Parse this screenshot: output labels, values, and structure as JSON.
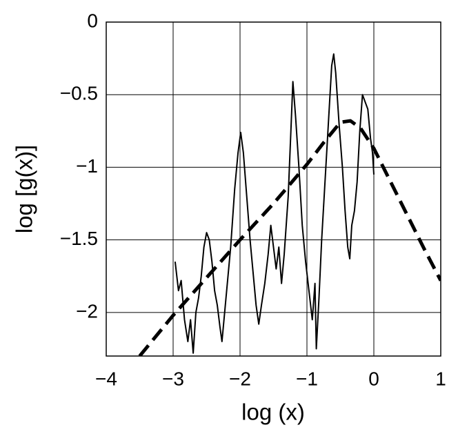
{
  "chart_data": {
    "type": "line",
    "xlabel": "log (x)",
    "ylabel": "log [g(x)]",
    "xlim": [
      -4,
      1
    ],
    "ylim": [
      -2.3,
      0
    ],
    "xticks": [
      {
        "value": -4,
        "label": "−4"
      },
      {
        "value": -3,
        "label": "−3"
      },
      {
        "value": -2,
        "label": "−2"
      },
      {
        "value": -1,
        "label": "−1"
      },
      0,
      1
    ],
    "yticks": [
      0,
      {
        "value": -0.5,
        "label": "−0.5"
      },
      {
        "value": -1,
        "label": "−1"
      },
      {
        "value": -1.5,
        "label": "−1.5"
      },
      {
        "value": -2,
        "label": "−2"
      }
    ],
    "grid": true,
    "series": [
      {
        "color": "#000000",
        "dashed": false,
        "x": [
          -2.97,
          -2.92,
          -2.88,
          -2.83,
          -2.78,
          -2.74,
          -2.7,
          -2.66,
          -2.62,
          -2.58,
          -2.54,
          -2.5,
          -2.46,
          -2.42,
          -2.38,
          -2.34,
          -2.3,
          -2.27,
          -2.24,
          -2.2,
          -2.14,
          -2.08,
          -2.03,
          -1.99,
          -1.95,
          -1.9,
          -1.85,
          -1.8,
          -1.76,
          -1.72,
          -1.68,
          -1.63,
          -1.58,
          -1.54,
          -1.5,
          -1.46,
          -1.42,
          -1.38,
          -1.34,
          -1.28,
          -1.24,
          -1.21,
          -1.17,
          -1.12,
          -1.07,
          -1.02,
          -0.97,
          -0.92,
          -0.88,
          -0.86,
          -0.82,
          -0.78,
          -0.73,
          -0.68,
          -0.63,
          -0.6,
          -0.57,
          -0.52,
          -0.47,
          -0.43,
          -0.39,
          -0.36,
          -0.33,
          -0.29,
          -0.25,
          -0.21,
          -0.17,
          -0.13,
          -0.09,
          -0.05,
          -0.02,
          0.0
        ],
        "values": [
          -1.65,
          -1.85,
          -1.78,
          -2.05,
          -2.2,
          -2.05,
          -2.28,
          -2.0,
          -1.9,
          -1.75,
          -1.55,
          -1.45,
          -1.5,
          -1.65,
          -1.85,
          -1.95,
          -2.1,
          -2.2,
          -2.05,
          -1.85,
          -1.55,
          -1.15,
          -0.9,
          -0.76,
          -0.9,
          -1.2,
          -1.5,
          -1.75,
          -1.95,
          -2.08,
          -1.95,
          -1.8,
          -1.6,
          -1.4,
          -1.55,
          -1.7,
          -1.55,
          -1.8,
          -1.6,
          -1.2,
          -0.75,
          -0.41,
          -0.65,
          -1.0,
          -1.4,
          -1.65,
          -1.85,
          -2.05,
          -1.8,
          -2.25,
          -1.9,
          -1.5,
          -1.1,
          -0.7,
          -0.3,
          -0.22,
          -0.35,
          -0.7,
          -1.0,
          -1.3,
          -1.55,
          -1.63,
          -1.4,
          -1.3,
          -1.1,
          -0.75,
          -0.5,
          -0.55,
          -0.6,
          -0.8,
          -0.9,
          -1.05
        ]
      },
      {
        "color": "#000000",
        "dashed": true,
        "x": [
          -3.5,
          -3,
          -2.5,
          -2,
          -1.5,
          -1,
          -0.75,
          -0.5,
          -0.35,
          -0.2,
          0,
          0.25,
          0.5,
          0.75,
          1
        ],
        "values": [
          -2.3,
          -2.02,
          -1.76,
          -1.5,
          -1.25,
          -0.98,
          -0.83,
          -0.69,
          -0.68,
          -0.73,
          -0.87,
          -1.1,
          -1.33,
          -1.56,
          -1.78
        ]
      }
    ]
  }
}
